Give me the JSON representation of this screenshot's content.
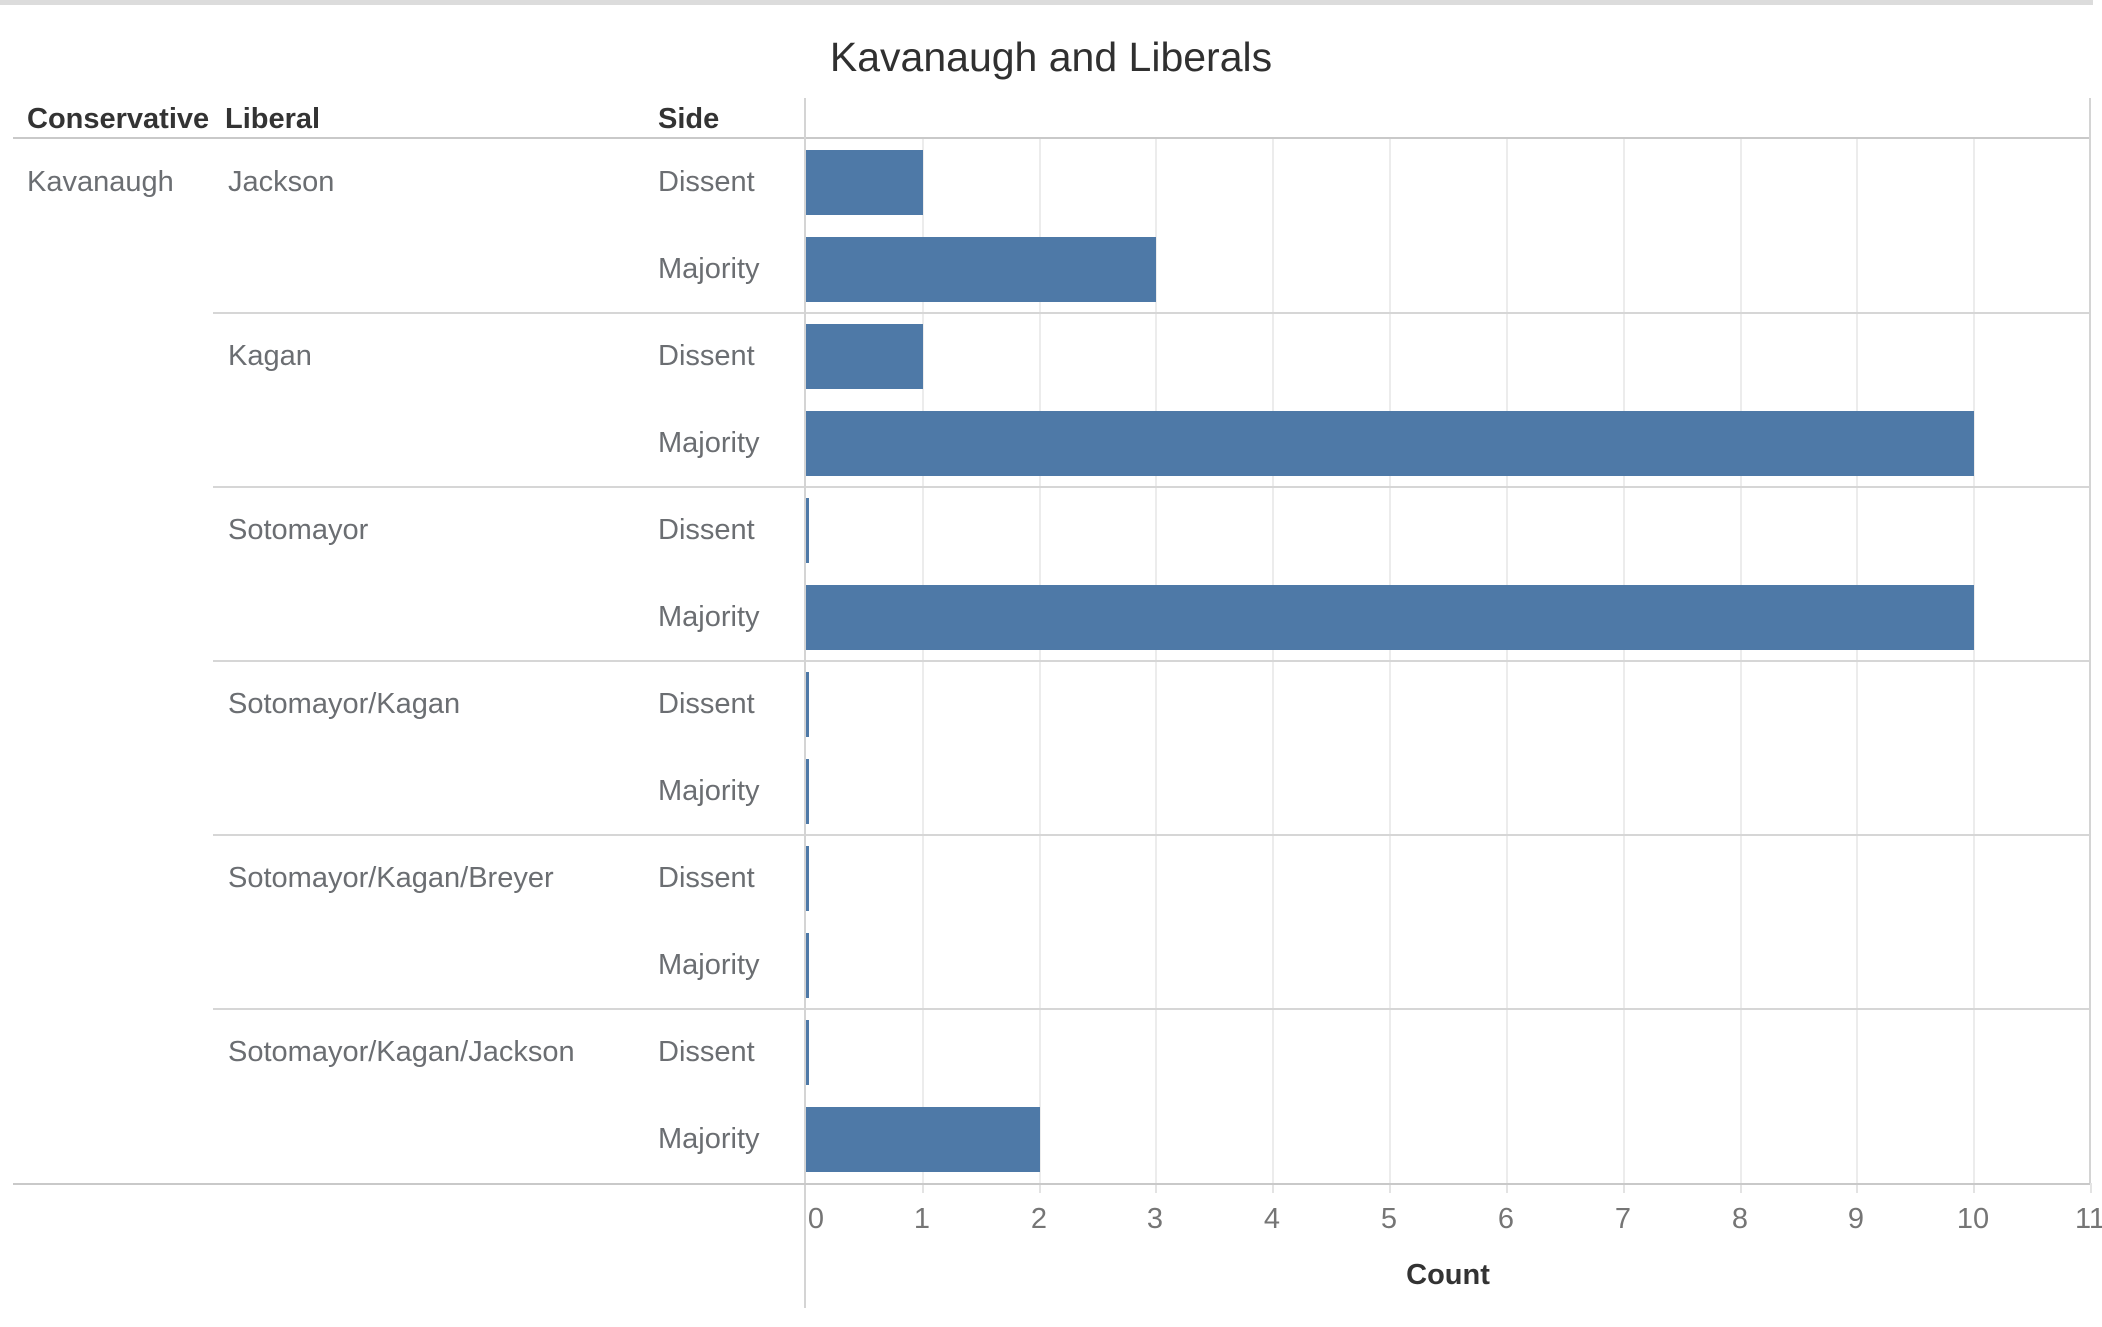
{
  "title": "Kavanaugh and Liberals",
  "columns": {
    "conservative": "Conservative",
    "liberal": "Liberal",
    "side": "Side"
  },
  "colors": {
    "bar": "#4e79a7",
    "gridline": "#ececec",
    "separator": "#d6d6d6",
    "header_text": "#333333",
    "label_text": "#6b6e72"
  },
  "axis": {
    "label": "Count",
    "ticks": [
      0,
      1,
      2,
      3,
      4,
      5,
      6,
      7,
      8,
      9,
      10,
      11
    ],
    "min": 0,
    "max": 11
  },
  "chart_data": {
    "type": "bar",
    "orientation": "horizontal",
    "title": "Kavanaugh and Liberals",
    "xlabel": "Count",
    "xlim": [
      0,
      11
    ],
    "grid": true,
    "conservative": "Kavanaugh",
    "groups": [
      {
        "liberal": "Jackson",
        "rows": [
          {
            "side": "Dissent",
            "count": 1
          },
          {
            "side": "Majority",
            "count": 3
          }
        ]
      },
      {
        "liberal": "Kagan",
        "rows": [
          {
            "side": "Dissent",
            "count": 1
          },
          {
            "side": "Majority",
            "count": 10
          }
        ]
      },
      {
        "liberal": "Sotomayor",
        "rows": [
          {
            "side": "Dissent",
            "count": 0
          },
          {
            "side": "Majority",
            "count": 10
          }
        ]
      },
      {
        "liberal": "Sotomayor/Kagan",
        "rows": [
          {
            "side": "Dissent",
            "count": 0
          },
          {
            "side": "Majority",
            "count": 0
          }
        ]
      },
      {
        "liberal": "Sotomayor/Kagan/Breyer",
        "rows": [
          {
            "side": "Dissent",
            "count": 0
          },
          {
            "side": "Majority",
            "count": 0
          }
        ]
      },
      {
        "liberal": "Sotomayor/Kagan/Jackson",
        "rows": [
          {
            "side": "Dissent",
            "count": 0
          },
          {
            "side": "Majority",
            "count": 2
          }
        ]
      }
    ]
  }
}
